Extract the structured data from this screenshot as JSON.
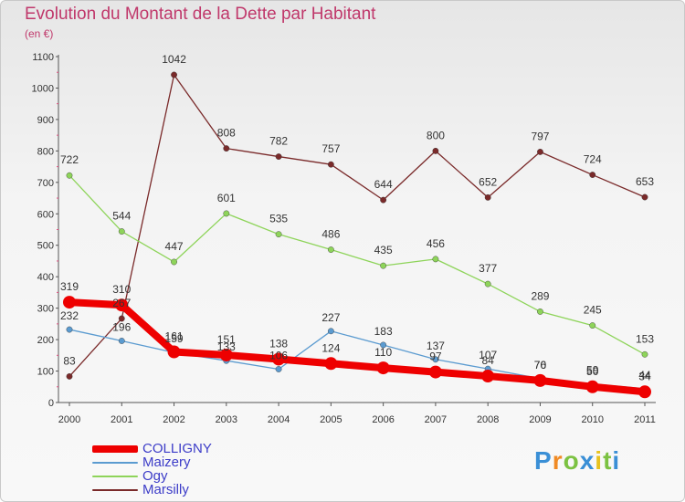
{
  "header": {
    "title": "Evolution du Montant de la Dette par Habitant",
    "subtitle": "(en €)"
  },
  "brand": {
    "text": "Proxiti"
  },
  "colors": {
    "title": "#c0386b",
    "axis": "#555555",
    "tick_label": "#333333",
    "value_label": "#333333",
    "legend_text": "#3c3cc8"
  },
  "chart_data": {
    "type": "line",
    "title": "Evolution du Montant de la Dette par Habitant",
    "subtitle": "(en €)",
    "x": [
      "2000",
      "2001",
      "2002",
      "2003",
      "2004",
      "2005",
      "2006",
      "2007",
      "2008",
      "2009",
      "2010",
      "2011"
    ],
    "ylim": [
      0,
      1100
    ],
    "yticks": [
      0,
      100,
      200,
      300,
      400,
      500,
      600,
      700,
      800,
      900,
      1000,
      1100
    ],
    "grid": false,
    "legend_position": "bottom-left",
    "series": [
      {
        "name": "COLLIGNY",
        "color": "#ee0000",
        "values": [
          319,
          310,
          161,
          151,
          138,
          124,
          110,
          97,
          84,
          70,
          50,
          34
        ],
        "labels": [
          "319",
          "310",
          "161",
          "151",
          "138",
          "124",
          "110",
          "97",
          "84",
          "70",
          "50",
          "34"
        ]
      },
      {
        "name": "Maizery",
        "color": "#5b9bd0",
        "values": [
          232,
          196,
          159,
          133,
          106,
          227,
          183,
          137,
          107,
          76,
          59,
          44
        ],
        "labels": [
          "232",
          "196",
          "159",
          "133",
          "106",
          "227",
          "183",
          "137",
          "107",
          "76",
          "59",
          "44"
        ]
      },
      {
        "name": "Ogy",
        "color": "#8ed45a",
        "values": [
          722,
          544,
          447,
          601,
          535,
          486,
          435,
          456,
          377,
          289,
          245,
          153
        ],
        "labels": [
          "722",
          "544",
          "447",
          "601",
          "535",
          "486",
          "435",
          "456",
          "377",
          "289",
          "245",
          "153"
        ]
      },
      {
        "name": "Marsilly",
        "color": "#7a2a2a",
        "values": [
          83,
          267,
          1042,
          808,
          782,
          757,
          644,
          800,
          652,
          797,
          724,
          653
        ],
        "labels": [
          "83",
          "267",
          "1042",
          "808",
          "782",
          "757",
          "644",
          "800",
          "652",
          "797",
          "724",
          "653"
        ]
      }
    ]
  }
}
